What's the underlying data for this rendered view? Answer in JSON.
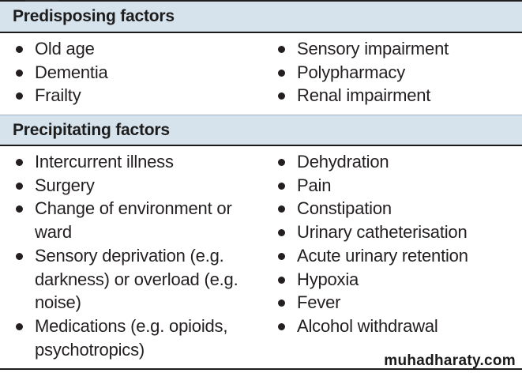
{
  "predisposing": {
    "title": "Predisposing factors",
    "left": [
      "Old age",
      "Dementia",
      "Frailty"
    ],
    "right": [
      "Sensory impairment",
      "Polypharmacy",
      "Renal impairment"
    ]
  },
  "precipitating": {
    "title": "Precipitating factors",
    "left": [
      "Intercurrent illness",
      "Surgery",
      "Change of environment or ward",
      "Sensory deprivation (e.g. darkness) or overload (e.g. noise)",
      "Medications (e.g. opioids, psychotropics)"
    ],
    "right": [
      "Dehydration",
      "Pain",
      "Constipation",
      "Urinary catheterisation",
      "Acute urinary retention",
      "Hypoxia",
      "Fever",
      "Alcohol withdrawal"
    ]
  },
  "watermark": "muhadharaty.com"
}
